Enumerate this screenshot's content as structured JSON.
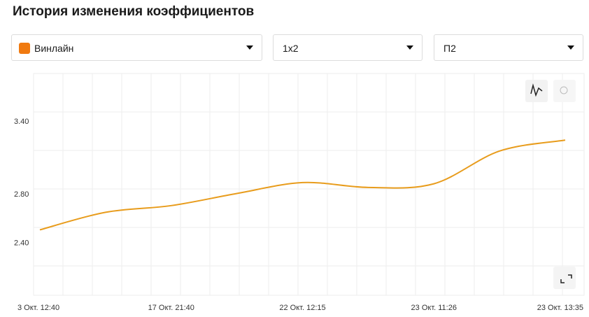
{
  "header": {
    "title": "История изменения коэффициентов"
  },
  "filters": [
    {
      "label": "Винлайн"
    },
    {
      "label": "1х2"
    },
    {
      "label": "П2"
    }
  ],
  "chart_data": {
    "type": "line",
    "categories": [
      "3 Окт. 12:40",
      null,
      "17 Окт. 21:40",
      null,
      "22 Окт. 12:15",
      null,
      "23 Окт. 11:26",
      null,
      "23 Окт. 13:35"
    ],
    "values": [
      2.51,
      2.655,
      2.71,
      2.81,
      2.9,
      2.86,
      2.89,
      3.16,
      3.25
    ],
    "color": "#e89c1c",
    "ylim": [
      1.97,
      3.8
    ],
    "yticks": [
      {
        "value": 2.4,
        "label": "2.40"
      },
      {
        "value": 2.8,
        "label": "2.80"
      },
      {
        "value": 3.4,
        "label": "3.40"
      }
    ]
  }
}
